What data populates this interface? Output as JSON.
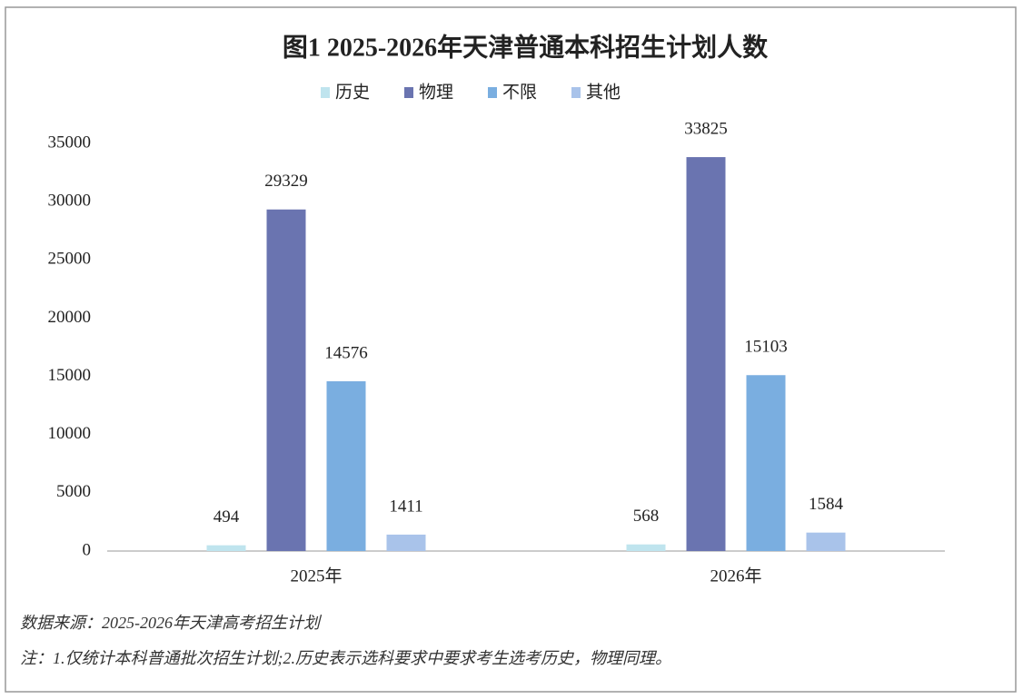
{
  "chart_data": {
    "type": "bar",
    "title": "图1  2025-2026年天津普通本科招生计划人数",
    "categories": [
      "2025年",
      "2026年"
    ],
    "series": [
      {
        "name": "历史",
        "color": "#bfe4ee",
        "values": [
          494,
          568
        ]
      },
      {
        "name": "物理",
        "color": "#6a74b0",
        "values": [
          29329,
          33825
        ]
      },
      {
        "name": "不限",
        "color": "#7aaee0",
        "values": [
          14576,
          15103
        ]
      },
      {
        "name": "其他",
        "color": "#a9c3ea",
        "values": [
          1411,
          1584
        ]
      }
    ],
    "ylim": [
      0,
      35000
    ],
    "yticks": [
      0,
      5000,
      10000,
      15000,
      20000,
      25000,
      30000,
      35000
    ],
    "grid": false,
    "source": "数据来源：2025-2026年天津高考招生计划",
    "note": "注：1.仅统计本科普通批次招生计划;2.历史表示选科要求中要求考生选考历史，物理同理。"
  }
}
